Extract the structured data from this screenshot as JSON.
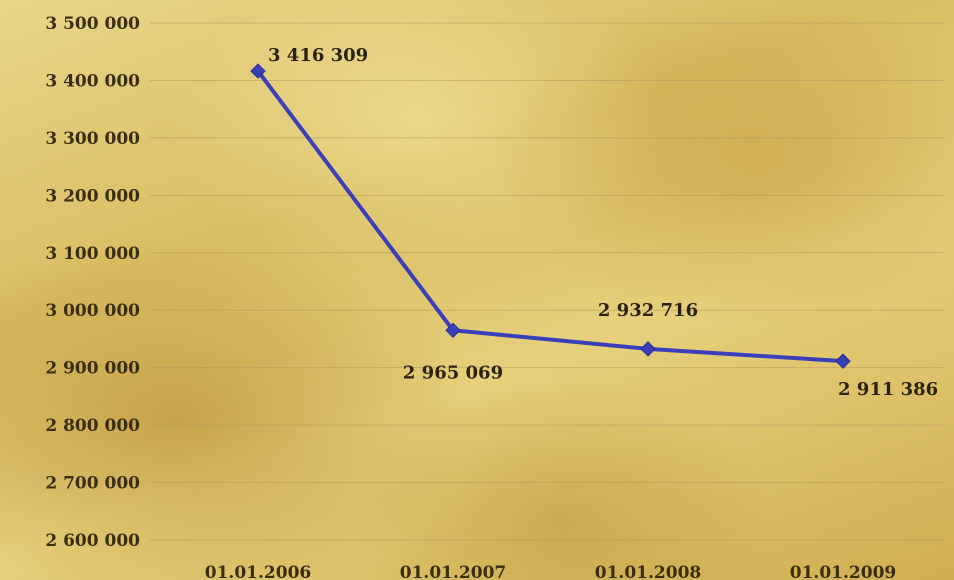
{
  "chart_data": {
    "type": "line",
    "title": "",
    "xlabel": "",
    "ylabel": "",
    "categories": [
      "01.01.2006",
      "01.01.2007",
      "01.01.2008",
      "01.01.2009"
    ],
    "series": [
      {
        "values": [
          3416309,
          2965069,
          2932716,
          2911386
        ],
        "data_labels": [
          "3 416 309",
          "2 965 069",
          "2 932 716",
          "2 911 386"
        ],
        "color": "#3a3fb8"
      }
    ],
    "ylim": [
      2600000,
      3500000
    ],
    "y_ticks": [
      3500000,
      3400000,
      3300000,
      3200000,
      3100000,
      3000000,
      2900000,
      2800000,
      2700000,
      2600000
    ],
    "y_tick_labels": [
      "3 500 000",
      "3 400 000",
      "3 300 000",
      "3 200 000",
      "3 100 000",
      "3 000 000",
      "2 900 000",
      "2 800 000",
      "2 700 000",
      "2 600 000"
    ],
    "grid": true,
    "legend": "none"
  }
}
